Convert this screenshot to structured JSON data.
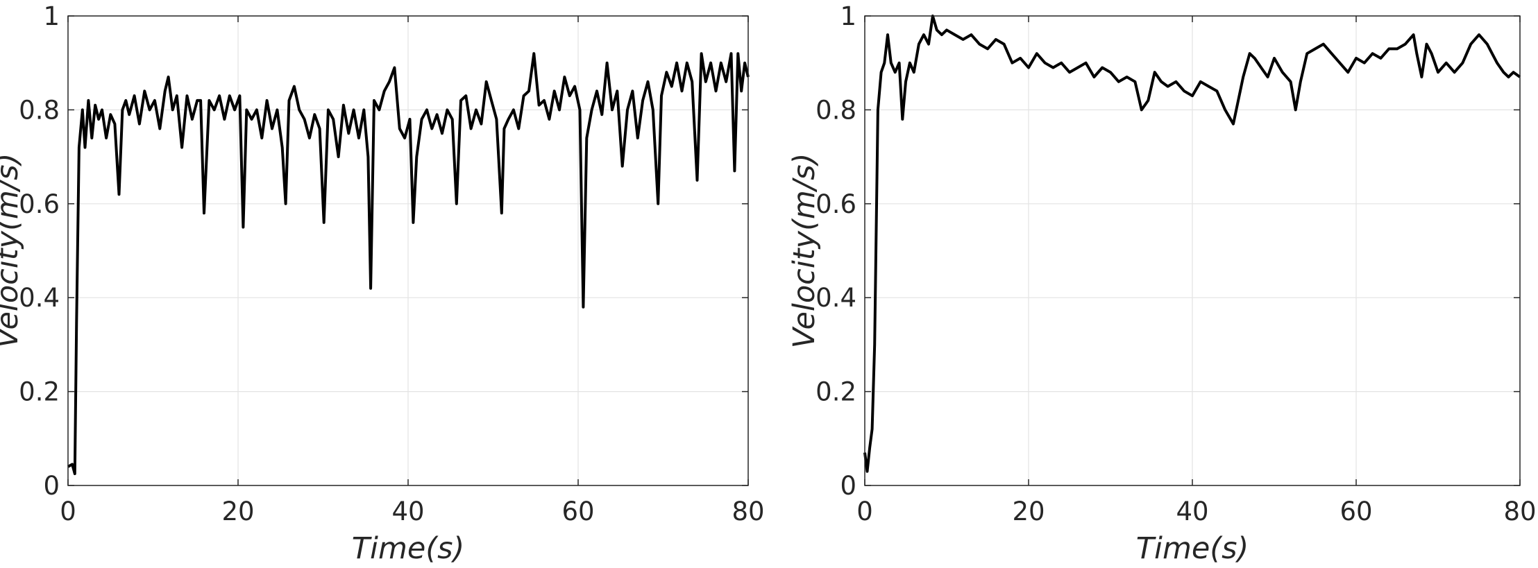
{
  "chart_data": [
    {
      "type": "line",
      "title": "",
      "xlabel": "Time(s)",
      "ylabel": "Velocity(m/s)",
      "xlim": [
        0,
        80
      ],
      "ylim": [
        0,
        1
      ],
      "xticks": [
        "0",
        "20",
        "40",
        "60",
        "80"
      ],
      "yticks": [
        "0",
        "0.2",
        "0.4",
        "0.6",
        "0.8",
        "1"
      ],
      "grid": true,
      "line_color": "#000000",
      "series": [
        {
          "x": [
            0,
            0.5,
            0.8,
            1.0,
            1.3,
            1.7,
            2.0,
            2.4,
            2.8,
            3.2,
            3.6,
            4.0,
            4.5,
            5.0,
            5.5,
            6.0,
            6.4,
            6.8,
            7.2,
            7.8,
            8.4,
            9.0,
            9.6,
            10.2,
            10.8,
            11.4,
            11.8,
            12.3,
            12.8,
            13.4,
            14.0,
            14.6,
            15.2,
            15.6,
            16.0,
            16.6,
            17.2,
            17.8,
            18.4,
            19.0,
            19.6,
            20.2,
            20.6,
            21.0,
            21.6,
            22.2,
            22.8,
            23.4,
            24.0,
            24.6,
            25.2,
            25.6,
            26.0,
            26.6,
            27.2,
            27.8,
            28.4,
            29.0,
            29.6,
            30.1,
            30.6,
            31.2,
            31.8,
            32.4,
            33.0,
            33.6,
            34.2,
            34.8,
            35.3,
            35.6,
            36.0,
            36.6,
            37.2,
            37.8,
            38.4,
            39.0,
            39.6,
            40.2,
            40.6,
            41.0,
            41.6,
            42.2,
            42.8,
            43.4,
            44.0,
            44.6,
            45.2,
            45.7,
            46.2,
            46.8,
            47.4,
            48.0,
            48.6,
            49.2,
            49.8,
            50.4,
            51.0,
            51.3,
            51.8,
            52.4,
            53.0,
            53.6,
            54.2,
            54.8,
            55.4,
            56.0,
            56.6,
            57.2,
            57.8,
            58.4,
            59.0,
            59.6,
            60.2,
            60.6,
            61.0,
            61.6,
            62.2,
            62.8,
            63.4,
            64.0,
            64.6,
            65.2,
            65.8,
            66.4,
            67.0,
            67.6,
            68.2,
            68.8,
            69.4,
            69.8,
            70.4,
            71.0,
            71.6,
            72.2,
            72.8,
            73.4,
            74.0,
            74.5,
            75.0,
            75.6,
            76.2,
            76.8,
            77.4,
            78.0,
            78.4,
            78.8,
            79.2,
            79.6,
            80.0
          ],
          "y": [
            0.04,
            0.045,
            0.025,
            0.35,
            0.72,
            0.8,
            0.72,
            0.82,
            0.74,
            0.81,
            0.78,
            0.8,
            0.74,
            0.79,
            0.77,
            0.62,
            0.8,
            0.82,
            0.79,
            0.83,
            0.77,
            0.84,
            0.8,
            0.82,
            0.76,
            0.84,
            0.87,
            0.8,
            0.83,
            0.72,
            0.83,
            0.78,
            0.82,
            0.82,
            0.58,
            0.82,
            0.8,
            0.83,
            0.78,
            0.83,
            0.8,
            0.83,
            0.55,
            0.8,
            0.78,
            0.8,
            0.74,
            0.82,
            0.76,
            0.8,
            0.72,
            0.6,
            0.82,
            0.85,
            0.8,
            0.78,
            0.74,
            0.79,
            0.76,
            0.56,
            0.8,
            0.78,
            0.7,
            0.81,
            0.75,
            0.8,
            0.74,
            0.8,
            0.7,
            0.42,
            0.82,
            0.8,
            0.84,
            0.86,
            0.89,
            0.76,
            0.74,
            0.78,
            0.56,
            0.7,
            0.78,
            0.8,
            0.76,
            0.79,
            0.75,
            0.8,
            0.78,
            0.6,
            0.82,
            0.83,
            0.76,
            0.8,
            0.77,
            0.86,
            0.82,
            0.78,
            0.58,
            0.76,
            0.78,
            0.8,
            0.76,
            0.83,
            0.84,
            0.92,
            0.81,
            0.82,
            0.78,
            0.84,
            0.8,
            0.87,
            0.83,
            0.85,
            0.8,
            0.38,
            0.74,
            0.8,
            0.84,
            0.79,
            0.9,
            0.8,
            0.84,
            0.68,
            0.8,
            0.84,
            0.74,
            0.82,
            0.86,
            0.8,
            0.6,
            0.83,
            0.88,
            0.85,
            0.9,
            0.84,
            0.9,
            0.86,
            0.65,
            0.92,
            0.86,
            0.9,
            0.84,
            0.9,
            0.86,
            0.92,
            0.67,
            0.92,
            0.84,
            0.9,
            0.87
          ]
        }
      ]
    },
    {
      "type": "line",
      "title": "",
      "xlabel": "Time(s)",
      "ylabel": "Velocity(m/s)",
      "xlim": [
        0,
        80
      ],
      "ylim": [
        0,
        1
      ],
      "xticks": [
        "0",
        "20",
        "40",
        "60",
        "80"
      ],
      "yticks": [
        "0",
        "0.2",
        "0.4",
        "0.6",
        "0.8",
        "1"
      ],
      "grid": true,
      "line_color": "#000000",
      "series": [
        {
          "x": [
            0,
            0.3,
            0.6,
            0.9,
            1.2,
            1.6,
            2.0,
            2.4,
            2.8,
            3.2,
            3.7,
            4.2,
            4.6,
            5.0,
            5.5,
            6.0,
            6.6,
            7.2,
            7.8,
            8.3,
            8.8,
            9.4,
            10.0,
            11.0,
            12.0,
            13.0,
            14.0,
            15.0,
            16.0,
            17.0,
            18.0,
            19.0,
            20.0,
            21.0,
            22.0,
            23.0,
            24.0,
            25.0,
            26.0,
            27.0,
            28.0,
            29.0,
            30.0,
            31.0,
            32.0,
            33.0,
            33.8,
            34.6,
            35.4,
            36.2,
            37.0,
            38.0,
            39.0,
            40.0,
            41.0,
            42.0,
            43.0,
            44.0,
            45.0,
            45.6,
            46.2,
            47.0,
            47.6,
            48.4,
            49.2,
            50.0,
            51.0,
            52.0,
            52.6,
            53.2,
            54.0,
            55.0,
            56.0,
            57.0,
            58.0,
            59.0,
            60.0,
            61.0,
            62.0,
            63.0,
            64.0,
            65.0,
            66.0,
            67.0,
            67.4,
            68.0,
            68.6,
            69.2,
            70.0,
            71.0,
            72.0,
            73.0,
            74.0,
            75.0,
            76.0,
            76.6,
            77.2,
            78.0,
            78.6,
            79.2,
            80.0
          ],
          "y": [
            0.07,
            0.03,
            0.08,
            0.12,
            0.3,
            0.8,
            0.88,
            0.9,
            0.96,
            0.9,
            0.88,
            0.9,
            0.78,
            0.86,
            0.9,
            0.88,
            0.94,
            0.96,
            0.94,
            1.0,
            0.97,
            0.96,
            0.97,
            0.96,
            0.95,
            0.96,
            0.94,
            0.93,
            0.95,
            0.94,
            0.9,
            0.91,
            0.89,
            0.92,
            0.9,
            0.89,
            0.9,
            0.88,
            0.89,
            0.9,
            0.87,
            0.89,
            0.88,
            0.86,
            0.87,
            0.86,
            0.8,
            0.82,
            0.88,
            0.86,
            0.85,
            0.86,
            0.84,
            0.83,
            0.86,
            0.85,
            0.84,
            0.8,
            0.77,
            0.82,
            0.87,
            0.92,
            0.91,
            0.89,
            0.87,
            0.91,
            0.88,
            0.86,
            0.8,
            0.86,
            0.92,
            0.93,
            0.94,
            0.92,
            0.9,
            0.88,
            0.91,
            0.9,
            0.92,
            0.91,
            0.93,
            0.93,
            0.94,
            0.96,
            0.92,
            0.87,
            0.94,
            0.92,
            0.88,
            0.9,
            0.88,
            0.9,
            0.94,
            0.96,
            0.94,
            0.92,
            0.9,
            0.88,
            0.87,
            0.88,
            0.87
          ]
        }
      ]
    }
  ]
}
